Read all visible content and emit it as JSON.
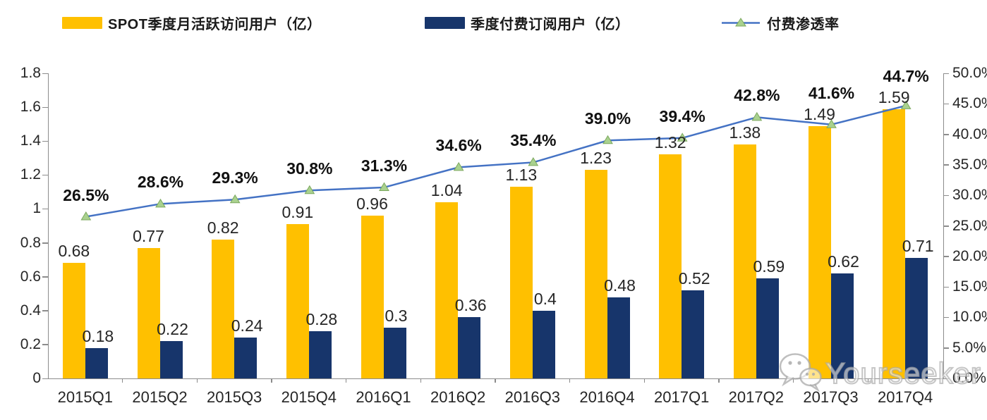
{
  "legend": [
    {
      "label": "SPOT季度月活跃访问用户（亿）",
      "swatch": "bar",
      "color": "#FFC000"
    },
    {
      "label": "季度付费订阅用户（亿）",
      "swatch": "bar",
      "color": "#17356B"
    },
    {
      "label": "付费渗透率",
      "swatch": "line",
      "color": "#4472C4",
      "marker_color": "#A9D18E",
      "marker_edge": "#7CA85E"
    }
  ],
  "chart_data": {
    "type": "bar",
    "subtype": "combo-clustered-bar-with-line",
    "title": "",
    "categories": [
      "2015Q1",
      "2015Q2",
      "2015Q3",
      "2015Q4",
      "2016Q1",
      "2016Q2",
      "2016Q3",
      "2016Q4",
      "2017Q1",
      "2017Q2",
      "2017Q3",
      "2017Q4"
    ],
    "series": [
      {
        "name": "SPOT季度月活跃访问用户（亿）",
        "type": "bar",
        "axis": "left",
        "color": "#FFC000",
        "values": [
          0.68,
          0.77,
          0.82,
          0.91,
          0.96,
          1.04,
          1.13,
          1.23,
          1.32,
          1.38,
          1.49,
          1.59
        ],
        "labels": [
          "0.68",
          "0.77",
          "0.82",
          "0.91",
          "0.96",
          "1.04",
          "1.13",
          "1.23",
          "1.32",
          "1.38",
          "1.49",
          "1.59"
        ]
      },
      {
        "name": "季度付费订阅用户（亿）",
        "type": "bar",
        "axis": "left",
        "color": "#17356B",
        "values": [
          0.18,
          0.22,
          0.24,
          0.28,
          0.3,
          0.36,
          0.4,
          0.48,
          0.52,
          0.59,
          0.62,
          0.71
        ],
        "labels": [
          "0.18",
          "0.22",
          "0.24",
          "0.28",
          "0.3",
          "0.36",
          "0.4",
          "0.48",
          "0.52",
          "0.59",
          "0.62",
          "0.71"
        ]
      },
      {
        "name": "付费渗透率",
        "type": "line",
        "axis": "right",
        "color": "#4472C4",
        "marker": "triangle",
        "marker_color": "#A9D18E",
        "marker_edge": "#7CA85E",
        "values": [
          26.5,
          28.6,
          29.3,
          30.8,
          31.3,
          34.6,
          35.4,
          39.0,
          39.4,
          42.8,
          41.6,
          44.7
        ],
        "labels": [
          "26.5%",
          "28.6%",
          "29.3%",
          "30.8%",
          "31.3%",
          "34.6%",
          "35.4%",
          "39.0%",
          "39.4%",
          "42.8%",
          "41.6%",
          "44.7%"
        ]
      }
    ],
    "left_axis": {
      "min": 0,
      "max": 1.8,
      "step": 0.2,
      "ticks": [
        "0",
        "0.2",
        "0.4",
        "0.6",
        "0.8",
        "1",
        "1.2",
        "1.4",
        "1.6",
        "1.8"
      ]
    },
    "right_axis": {
      "min": 0,
      "max": 50,
      "step": 5,
      "ticks": [
        "0.0%",
        "5.0%",
        "10.0%",
        "15.0%",
        "20.0%",
        "25.0%",
        "30.0%",
        "35.0%",
        "40.0%",
        "45.0%",
        "50.0%"
      ]
    },
    "grid": false,
    "legend_position": "top"
  },
  "watermark": {
    "text": "Yourseeker",
    "icon": "wechat-icon"
  }
}
